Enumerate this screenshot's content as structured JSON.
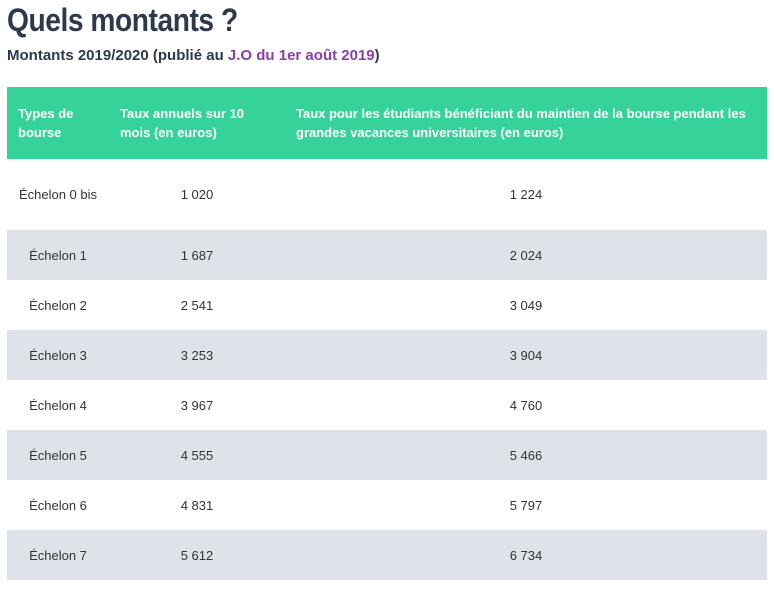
{
  "title": "Quels montants ?",
  "subtitle": {
    "prefix": "Montants 2019/2020 (publié au ",
    "link": "J.O du 1er août 2019",
    "suffix": ")"
  },
  "colors": {
    "header_bg": "#35d399",
    "stripe_bg": "#dfe3e9",
    "link": "#8a3ea8",
    "title": "#2e3a4b"
  },
  "table": {
    "headers": [
      "Types de bourse",
      "Taux annuels sur 10 mois (en euros)",
      "Taux pour les étudiants bénéficiant du maintien de la bourse pendant les grandes vacances universitaires (en euros)"
    ],
    "rows": [
      [
        "Échelon 0 bis",
        "1 020",
        "1 224"
      ],
      [
        "Échelon 1",
        "1 687",
        "2 024"
      ],
      [
        "Échelon 2",
        "2 541",
        "3 049"
      ],
      [
        "Échelon 3",
        "3 253",
        "3 904"
      ],
      [
        "Échelon 4",
        "3 967",
        "4 760"
      ],
      [
        "Échelon 5",
        "4 555",
        "5 466"
      ],
      [
        "Échelon 6",
        "4 831",
        "5 797"
      ],
      [
        "Échelon 7",
        "5 612",
        "6 734"
      ]
    ]
  }
}
